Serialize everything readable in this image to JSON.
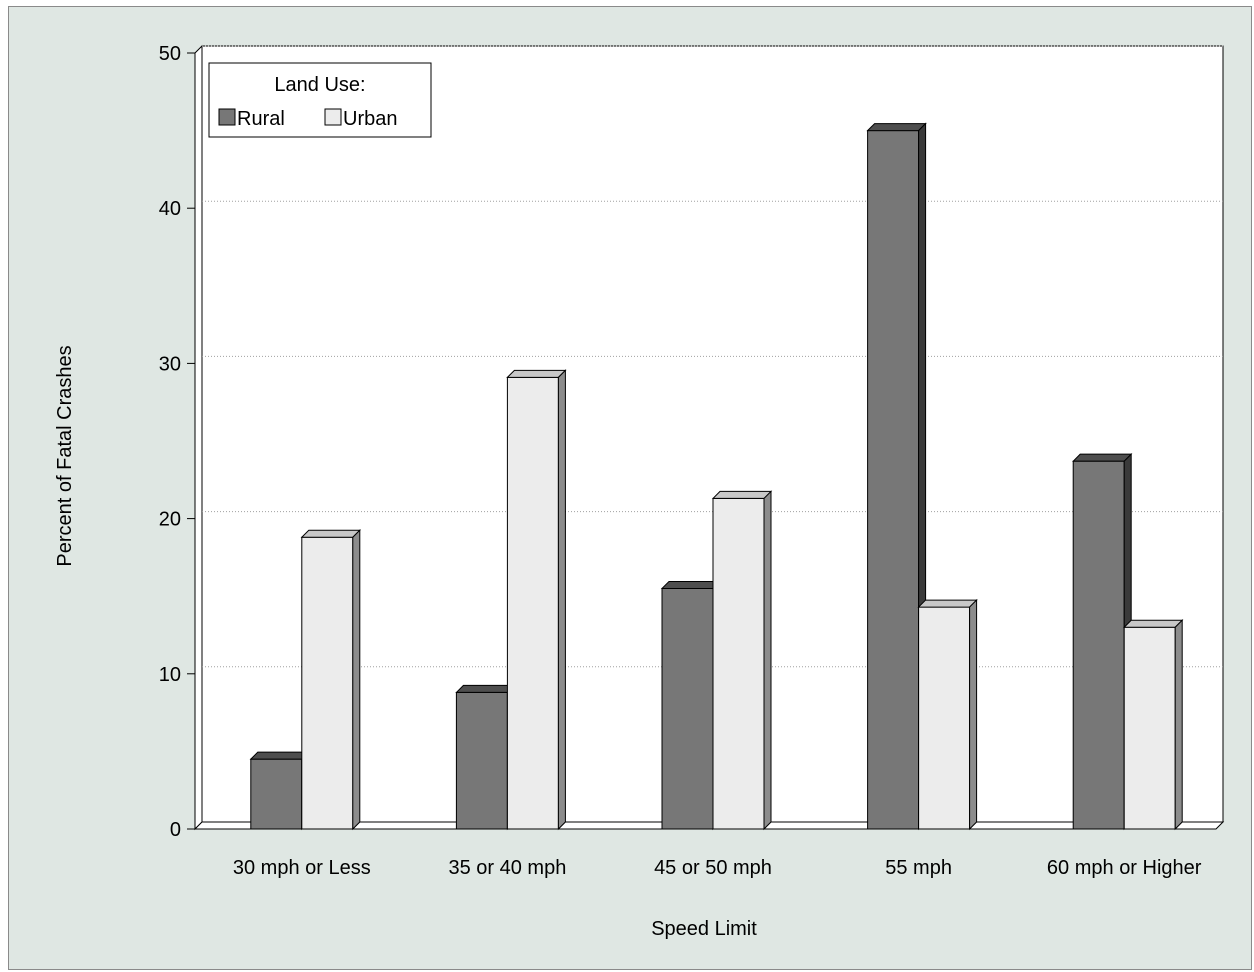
{
  "chart_data": {
    "type": "bar",
    "title": "",
    "xlabel": "Speed Limit",
    "ylabel": "Percent of Fatal Crashes",
    "categories": [
      "30 mph or Less",
      "35 or 40 mph",
      "45 or 50 mph",
      "55 mph",
      "60 mph or Higher"
    ],
    "series": [
      {
        "name": "Rural",
        "values": [
          4.5,
          8.8,
          15.5,
          45.0,
          23.7
        ],
        "color": "#777777"
      },
      {
        "name": "Urban",
        "values": [
          18.8,
          29.1,
          21.3,
          14.3,
          13.0
        ],
        "color": "#ececec"
      }
    ],
    "ylim": [
      0,
      50
    ],
    "yticks": [
      0,
      10,
      20,
      30,
      40,
      50
    ],
    "grid": true,
    "legend": {
      "title": "Land Use:",
      "position": "top-left"
    }
  },
  "colors": {
    "background": "#dfe7e3",
    "plot_area": "#ffffff",
    "gridline": "#a0a0a0"
  }
}
